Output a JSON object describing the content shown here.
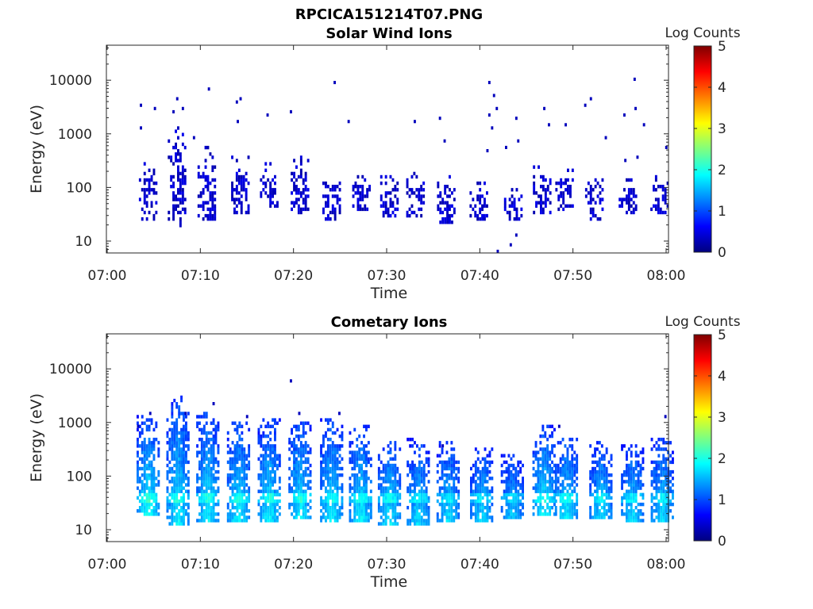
{
  "figure_title": "RPCICA151214T07.PNG",
  "colormap": [
    "#00007f",
    "#0000ff",
    "#007fff",
    "#00ffff",
    "#7fff7f",
    "#ffff00",
    "#ff7f00",
    "#ff0000",
    "#7f0000"
  ],
  "chart_data": [
    {
      "type": "heatmap",
      "title": "Solar Wind Ions",
      "xlabel": "Time",
      "ylabel": "Energy (eV)",
      "x_range": [
        "07:00",
        "08:00"
      ],
      "x_ticks": [
        "07:00",
        "07:10",
        "07:20",
        "07:30",
        "07:40",
        "07:50",
        "08:00"
      ],
      "y_range": [
        6,
        45000
      ],
      "y_scale": "log",
      "y_ticks": [
        "10",
        "100",
        "1000",
        "10000"
      ],
      "colorbar": {
        "label": "Log Counts",
        "range": [
          0,
          5
        ],
        "ticks": [
          "0",
          "1",
          "2",
          "3",
          "4",
          "5"
        ]
      },
      "bursts": [
        {
          "t": 4.3,
          "emin": 25,
          "emax": 280,
          "level": 0.5
        },
        {
          "t": 7.4,
          "emin": 18,
          "emax": 1300,
          "level": 0.55
        },
        {
          "t": 10.6,
          "emin": 25,
          "emax": 600,
          "level": 0.5
        },
        {
          "t": 14.2,
          "emin": 30,
          "emax": 400,
          "level": 0.45
        },
        {
          "t": 17.3,
          "emin": 40,
          "emax": 280,
          "level": 0.45
        },
        {
          "t": 20.6,
          "emin": 30,
          "emax": 380,
          "level": 0.45
        },
        {
          "t": 24.0,
          "emin": 25,
          "emax": 220,
          "level": 0.45
        },
        {
          "t": 27.2,
          "emin": 35,
          "emax": 160,
          "level": 0.4
        },
        {
          "t": 30.2,
          "emin": 28,
          "emax": 160,
          "level": 0.4
        },
        {
          "t": 33.0,
          "emin": 28,
          "emax": 200,
          "level": 0.4
        },
        {
          "t": 36.3,
          "emin": 20,
          "emax": 160,
          "level": 0.4
        },
        {
          "t": 39.8,
          "emin": 24,
          "emax": 130,
          "level": 0.45
        },
        {
          "t": 43.5,
          "emin": 25,
          "emax": 100,
          "level": 0.35
        },
        {
          "t": 46.6,
          "emin": 30,
          "emax": 260,
          "level": 0.45
        },
        {
          "t": 49.0,
          "emin": 35,
          "emax": 250,
          "level": 0.5
        },
        {
          "t": 52.2,
          "emin": 25,
          "emax": 140,
          "level": 0.4
        },
        {
          "t": 55.8,
          "emin": 30,
          "emax": 140,
          "level": 0.4
        },
        {
          "t": 59.2,
          "emin": 30,
          "emax": 170,
          "level": 0.4
        }
      ],
      "isolated_points": [
        {
          "t": 3.5,
          "e": 3500
        },
        {
          "t": 3.5,
          "e": 1300
        },
        {
          "t": 5.0,
          "e": 3000
        },
        {
          "t": 7.0,
          "e": 2500
        },
        {
          "t": 7.4,
          "e": 4500
        },
        {
          "t": 8.0,
          "e": 3000
        },
        {
          "t": 9.2,
          "e": 900
        },
        {
          "t": 10.8,
          "e": 6800
        },
        {
          "t": 13.8,
          "e": 3900
        },
        {
          "t": 14.2,
          "e": 4300
        },
        {
          "t": 13.9,
          "e": 1800
        },
        {
          "t": 17.1,
          "e": 2200
        },
        {
          "t": 19.6,
          "e": 2500
        },
        {
          "t": 24.3,
          "e": 8500
        },
        {
          "t": 25.8,
          "e": 1800
        },
        {
          "t": 32.9,
          "e": 1700
        },
        {
          "t": 35.6,
          "e": 2000
        },
        {
          "t": 36.1,
          "e": 700
        },
        {
          "t": 40.9,
          "e": 8700
        },
        {
          "t": 41.4,
          "e": 5500
        },
        {
          "t": 40.9,
          "e": 2300
        },
        {
          "t": 41.7,
          "e": 3000
        },
        {
          "t": 43.8,
          "e": 2000
        },
        {
          "t": 41.2,
          "e": 1200
        },
        {
          "t": 40.7,
          "e": 500
        },
        {
          "t": 42.7,
          "e": 550
        },
        {
          "t": 44.0,
          "e": 700
        },
        {
          "t": 46.8,
          "e": 2800
        },
        {
          "t": 47.3,
          "e": 1500
        },
        {
          "t": 49.1,
          "e": 1500
        },
        {
          "t": 51.2,
          "e": 3500
        },
        {
          "t": 51.8,
          "e": 4500
        },
        {
          "t": 53.4,
          "e": 900
        },
        {
          "t": 55.4,
          "e": 2200
        },
        {
          "t": 56.5,
          "e": 10500
        },
        {
          "t": 56.6,
          "e": 3000
        },
        {
          "t": 57.5,
          "e": 1500
        },
        {
          "t": 59.9,
          "e": 550
        },
        {
          "t": 55.5,
          "e": 300
        },
        {
          "t": 56.8,
          "e": 380
        },
        {
          "t": 43.2,
          "e": 9
        },
        {
          "t": 43.8,
          "e": 13
        },
        {
          "t": 41.8,
          "e": 6
        }
      ]
    },
    {
      "type": "heatmap",
      "title": "Cometary Ions",
      "xlabel": "Time",
      "ylabel": "Energy (eV)",
      "x_range": [
        "07:00",
        "08:00"
      ],
      "x_ticks": [
        "07:00",
        "07:10",
        "07:20",
        "07:30",
        "07:40",
        "07:50",
        "08:00"
      ],
      "y_range": [
        6,
        45000
      ],
      "y_scale": "log",
      "y_ticks": [
        "10",
        "100",
        "1000",
        "10000"
      ],
      "colorbar": {
        "label": "Log Counts",
        "range": [
          0,
          5
        ],
        "ticks": [
          "0",
          "1",
          "2",
          "3",
          "4",
          "5"
        ]
      },
      "peak_band_energy": 40,
      "bursts": [
        {
          "t": 4.3,
          "emin": 18,
          "emax": 1300,
          "level": 1.7
        },
        {
          "t": 7.5,
          "emin": 12,
          "emax": 3000,
          "level": 1.6
        },
        {
          "t": 10.7,
          "emin": 14,
          "emax": 1800,
          "level": 1.6
        },
        {
          "t": 14.0,
          "emin": 14,
          "emax": 1100,
          "level": 1.6
        },
        {
          "t": 17.3,
          "emin": 14,
          "emax": 1200,
          "level": 1.6
        },
        {
          "t": 20.6,
          "emin": 15,
          "emax": 1100,
          "level": 1.6
        },
        {
          "t": 24.0,
          "emin": 14,
          "emax": 1200,
          "level": 1.6
        },
        {
          "t": 27.1,
          "emin": 14,
          "emax": 900,
          "level": 1.6
        },
        {
          "t": 30.2,
          "emin": 12,
          "emax": 450,
          "level": 1.6
        },
        {
          "t": 33.3,
          "emin": 12,
          "emax": 500,
          "level": 1.5
        },
        {
          "t": 36.5,
          "emin": 13,
          "emax": 450,
          "level": 1.5
        },
        {
          "t": 40.1,
          "emin": 13,
          "emax": 350,
          "level": 1.5
        },
        {
          "t": 43.4,
          "emin": 15,
          "emax": 250,
          "level": 1.4
        },
        {
          "t": 46.8,
          "emin": 18,
          "emax": 950,
          "level": 1.6
        },
        {
          "t": 49.2,
          "emin": 15,
          "emax": 550,
          "level": 1.6
        },
        {
          "t": 52.9,
          "emin": 15,
          "emax": 450,
          "level": 1.5
        },
        {
          "t": 56.3,
          "emin": 14,
          "emax": 400,
          "level": 1.5
        },
        {
          "t": 59.5,
          "emin": 14,
          "emax": 500,
          "level": 1.5
        }
      ],
      "isolated_points": [
        {
          "t": 19.6,
          "e": 6200
        },
        {
          "t": 3.2,
          "e": 900
        },
        {
          "t": 4.5,
          "e": 1500
        },
        {
          "t": 8.3,
          "e": 1500
        },
        {
          "t": 11.3,
          "e": 2200
        },
        {
          "t": 14.9,
          "e": 1200
        },
        {
          "t": 20.5,
          "e": 1400
        },
        {
          "t": 24.8,
          "e": 1400
        },
        {
          "t": 35.9,
          "e": 350
        },
        {
          "t": 48.4,
          "e": 800
        },
        {
          "t": 59.8,
          "e": 1300
        }
      ]
    }
  ]
}
